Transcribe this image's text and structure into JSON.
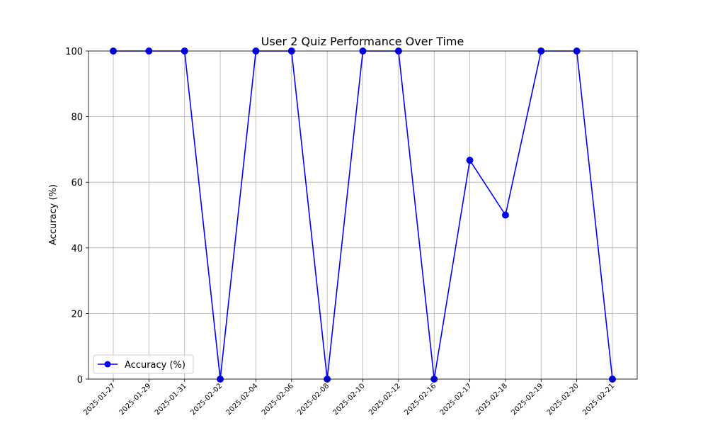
{
  "chart_data": {
    "type": "line",
    "title": "User 2 Quiz Performance Over Time",
    "xlabel": "",
    "ylabel": "Accuracy (%)",
    "categories": [
      "2025-01-27",
      "2025-01-29",
      "2025-01-31",
      "2025-02-02",
      "2025-02-04",
      "2025-02-06",
      "2025-02-08",
      "2025-02-10",
      "2025-02-12",
      "2025-02-16",
      "2025-02-17",
      "2025-02-18",
      "2025-02-19",
      "2025-02-20",
      "2025-02-21"
    ],
    "series": [
      {
        "name": "Accuracy (%)",
        "color": "#0000ff",
        "marker": "circle",
        "values": [
          100,
          100,
          100,
          0,
          100,
          100,
          0,
          100,
          100,
          0,
          66.7,
          50,
          100,
          100,
          0
        ]
      }
    ],
    "ylim": [
      0,
      100
    ],
    "yticks": [
      0,
      20,
      40,
      60,
      80,
      100
    ],
    "grid": true,
    "legend": "lower-left"
  }
}
